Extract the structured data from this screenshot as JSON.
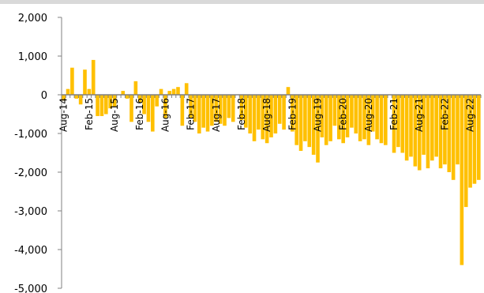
{
  "chart_data": {
    "type": "bar",
    "title": "",
    "xlabel": "",
    "ylabel": "",
    "ylim": [
      -5000,
      2000
    ],
    "yticks": [
      "2,000",
      "1,000",
      "0",
      "-1,000",
      "-2,000",
      "-3,000",
      "-4,000",
      "-5,000"
    ],
    "ytick_values": [
      2000,
      1000,
      0,
      -1000,
      -2000,
      -3000,
      -4000,
      -5000
    ],
    "xtick_labels": [
      "Aug-14",
      "Feb-15",
      "Aug-15",
      "Feb-16",
      "Aug-16",
      "Feb-17",
      "Aug-17",
      "Feb-18",
      "Aug-18",
      "Feb-19",
      "Aug-19",
      "Feb-20",
      "Aug-20",
      "Feb-21",
      "Aug-21",
      "Feb-22",
      "Aug-22"
    ],
    "bar_color": "#ffc000",
    "axis_color": "#808080",
    "grid": false,
    "legend": "none",
    "categories": [
      "Aug-14",
      "Sep-14",
      "Oct-14",
      "Nov-14",
      "Dec-14",
      "Jan-15",
      "Feb-15",
      "Mar-15",
      "Apr-15",
      "May-15",
      "Jun-15",
      "Jul-15",
      "Aug-15",
      "Sep-15",
      "Oct-15",
      "Nov-15",
      "Dec-15",
      "Jan-16",
      "Feb-16",
      "Mar-16",
      "Apr-16",
      "May-16",
      "Jun-16",
      "Jul-16",
      "Aug-16",
      "Sep-16",
      "Oct-16",
      "Nov-16",
      "Dec-16",
      "Jan-17",
      "Feb-17",
      "Mar-17",
      "Apr-17",
      "May-17",
      "Jun-17",
      "Jul-17",
      "Aug-17",
      "Sep-17",
      "Oct-17",
      "Nov-17",
      "Dec-17",
      "Jan-18",
      "Feb-18",
      "Mar-18",
      "Apr-18",
      "May-18",
      "Jun-18",
      "Jul-18",
      "Aug-18",
      "Sep-18",
      "Oct-18",
      "Nov-18",
      "Dec-18",
      "Jan-19",
      "Feb-19",
      "Mar-19",
      "Apr-19",
      "May-19",
      "Jun-19",
      "Jul-19",
      "Aug-19",
      "Sep-19",
      "Oct-19",
      "Nov-19",
      "Dec-19",
      "Jan-20",
      "Feb-20",
      "Mar-20",
      "Apr-20",
      "May-20",
      "Jun-20",
      "Jul-20",
      "Aug-20",
      "Sep-20",
      "Oct-20",
      "Nov-20",
      "Dec-20",
      "Jan-21",
      "Feb-21",
      "Mar-21",
      "Apr-21",
      "May-21",
      "Jun-21",
      "Jul-21",
      "Aug-21",
      "Sep-21",
      "Oct-21",
      "Nov-21",
      "Dec-21",
      "Jan-22",
      "Feb-22",
      "Mar-22",
      "Apr-22",
      "May-22",
      "Jun-22",
      "Jul-22",
      "Aug-22",
      "Sep-22",
      "Oct-22"
    ],
    "values": [
      -150,
      150,
      700,
      -100,
      -250,
      650,
      150,
      900,
      -550,
      -550,
      -500,
      -350,
      -300,
      0,
      100,
      -100,
      -700,
      350,
      -200,
      -500,
      -700,
      -950,
      -300,
      150,
      -600,
      100,
      150,
      200,
      -800,
      300,
      -600,
      -700,
      -1000,
      -850,
      -950,
      -800,
      -700,
      -750,
      -800,
      -600,
      -700,
      0,
      -650,
      -850,
      -1000,
      -1200,
      -900,
      -1150,
      -1250,
      -1100,
      -1000,
      -750,
      -900,
      200,
      -950,
      -1300,
      -1450,
      -1200,
      -1350,
      -1550,
      -1750,
      -1100,
      -1300,
      -1200,
      -800,
      -1150,
      -1250,
      -1100,
      -850,
      -1000,
      -1200,
      -1150,
      -1300,
      -950,
      -1150,
      -1250,
      -1300,
      0,
      -1500,
      -1350,
      -1500,
      -1700,
      -1600,
      -1850,
      -1950,
      -1550,
      -1900,
      -1700,
      -1600,
      -1900,
      -1800,
      -2000,
      -2200,
      -1800,
      -4400,
      -2900,
      -2400,
      -2300,
      -2200
    ]
  }
}
